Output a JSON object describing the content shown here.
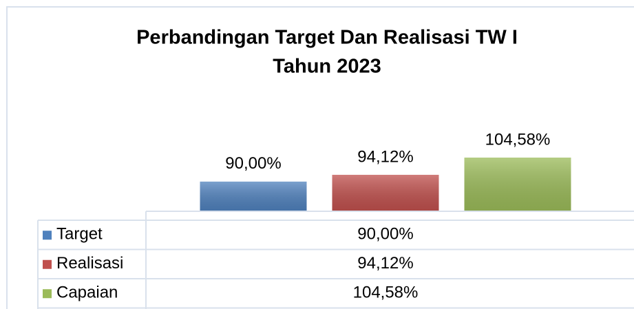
{
  "chart_data": {
    "type": "bar",
    "title": "Perbandingan Target Dan Realisasi TW I",
    "subtitle": "Tahun 2023",
    "categories": [
      null
    ],
    "series": [
      {
        "name": "Target",
        "color": "#4f81bd",
        "values": [
          90
        ],
        "value_labels": [
          "90,00%"
        ]
      },
      {
        "name": "Realisasi",
        "color": "#c0504d",
        "values": [
          94.12
        ],
        "value_labels": [
          "94,12%"
        ]
      },
      {
        "name": "Capaian",
        "color": "#9bbb59",
        "values": [
          104.58
        ],
        "value_labels": [
          "104,58%"
        ]
      }
    ],
    "ylim": [
      72,
      110
    ],
    "data_table": true
  }
}
